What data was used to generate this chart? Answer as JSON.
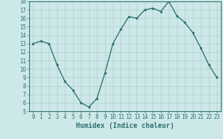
{
  "x": [
    0,
    1,
    2,
    3,
    4,
    5,
    6,
    7,
    8,
    9,
    10,
    11,
    12,
    13,
    14,
    15,
    16,
    17,
    18,
    19,
    20,
    21,
    22,
    23
  ],
  "y": [
    13,
    13.3,
    13,
    10.5,
    8.5,
    7.5,
    6.0,
    5.5,
    6.5,
    9.5,
    13.0,
    14.7,
    16.2,
    16.0,
    17.0,
    17.2,
    16.8,
    18.0,
    16.3,
    15.5,
    14.3,
    12.5,
    10.5,
    9.0
  ],
  "line_color": "#2d7070",
  "marker": "o",
  "markersize": 2.0,
  "linewidth": 1.0,
  "bg_color": "#cde8e8",
  "grid_color": "#b0cccc",
  "xlabel": "Humidex (Indice chaleur)",
  "xlabel_fontsize": 7,
  "ylim": [
    5,
    18
  ],
  "xlim": [
    -0.5,
    23.5
  ],
  "yticks": [
    5,
    6,
    7,
    8,
    9,
    10,
    11,
    12,
    13,
    14,
    15,
    16,
    17,
    18
  ],
  "xticks": [
    0,
    1,
    2,
    3,
    4,
    5,
    6,
    7,
    8,
    9,
    10,
    11,
    12,
    13,
    14,
    15,
    16,
    17,
    18,
    19,
    20,
    21,
    22,
    23
  ],
  "tick_fontsize": 5.5,
  "tick_color": "#2d7070",
  "spine_color": "#2d7070"
}
